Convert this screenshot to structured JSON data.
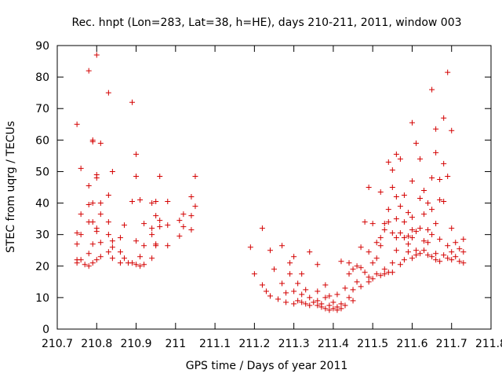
{
  "chart_data": {
    "type": "scatter",
    "title": "Rec. hnpt (Lon=283, Lat=38, h=HE), days 210-211, 2011, window 003",
    "xlabel": "GPS time / Days of year 2011",
    "ylabel": "STEC from uqrg / TECUs",
    "xlim": [
      210.7,
      211.8
    ],
    "ylim": [
      0,
      90
    ],
    "xticks": [
      "210.7",
      "210.8",
      "210.9",
      "211",
      "211.1",
      "211.2",
      "211.3",
      "211.4",
      "211.5",
      "211.6",
      "211.7",
      "211.8"
    ],
    "xtick_values": [
      210.7,
      210.8,
      210.9,
      211.0,
      211.1,
      211.2,
      211.3,
      211.4,
      211.5,
      211.6,
      211.7,
      211.8
    ],
    "yticks": [
      "0",
      "10",
      "20",
      "30",
      "40",
      "50",
      "60",
      "70",
      "80",
      "90"
    ],
    "ytick_values": [
      0,
      10,
      20,
      30,
      40,
      50,
      60,
      70,
      80,
      90
    ],
    "grid": false,
    "marker": "+",
    "color": "#d40000",
    "points": [
      [
        210.75,
        65
      ],
      [
        210.75,
        30.5
      ],
      [
        210.75,
        27
      ],
      [
        210.75,
        22
      ],
      [
        210.75,
        21
      ],
      [
        210.76,
        51
      ],
      [
        210.76,
        36.5
      ],
      [
        210.76,
        30
      ],
      [
        210.76,
        22
      ],
      [
        210.77,
        20.5
      ],
      [
        210.78,
        82
      ],
      [
        210.78,
        45.5
      ],
      [
        210.78,
        39.5
      ],
      [
        210.78,
        34
      ],
      [
        210.78,
        24
      ],
      [
        210.78,
        20
      ],
      [
        210.79,
        60
      ],
      [
        210.79,
        59.5
      ],
      [
        210.79,
        40
      ],
      [
        210.79,
        34
      ],
      [
        210.79,
        27
      ],
      [
        210.79,
        21
      ],
      [
        210.8,
        87
      ],
      [
        210.8,
        49
      ],
      [
        210.8,
        48
      ],
      [
        210.8,
        32
      ],
      [
        210.8,
        31
      ],
      [
        210.8,
        22
      ],
      [
        210.81,
        59
      ],
      [
        210.81,
        40
      ],
      [
        210.81,
        36.5
      ],
      [
        210.81,
        27.5
      ],
      [
        210.81,
        23
      ],
      [
        210.83,
        75
      ],
      [
        210.83,
        42.5
      ],
      [
        210.83,
        34
      ],
      [
        210.83,
        30
      ],
      [
        210.83,
        24.5
      ],
      [
        210.84,
        50
      ],
      [
        210.84,
        28
      ],
      [
        210.84,
        26
      ],
      [
        210.84,
        22.5
      ],
      [
        210.86,
        29
      ],
      [
        210.86,
        24.5
      ],
      [
        210.86,
        21
      ],
      [
        210.87,
        33
      ],
      [
        210.87,
        22.5
      ],
      [
        210.88,
        21
      ],
      [
        210.89,
        72
      ],
      [
        210.89,
        40.5
      ],
      [
        210.89,
        21
      ],
      [
        210.9,
        55.5
      ],
      [
        210.9,
        48.5
      ],
      [
        210.9,
        28
      ],
      [
        210.9,
        20.5
      ],
      [
        210.91,
        41
      ],
      [
        210.91,
        23
      ],
      [
        210.91,
        20
      ],
      [
        210.92,
        33.5
      ],
      [
        210.92,
        26.5
      ],
      [
        210.92,
        20.5
      ],
      [
        210.94,
        40
      ],
      [
        210.94,
        32
      ],
      [
        210.94,
        30
      ],
      [
        210.94,
        22.5
      ],
      [
        210.95,
        40.5
      ],
      [
        210.95,
        36
      ],
      [
        210.95,
        27
      ],
      [
        210.95,
        26.5
      ],
      [
        210.96,
        48.5
      ],
      [
        210.96,
        34.5
      ],
      [
        210.96,
        32.5
      ],
      [
        210.98,
        40.5
      ],
      [
        210.98,
        33
      ],
      [
        210.98,
        26.5
      ],
      [
        211.01,
        34.5
      ],
      [
        211.01,
        29.5
      ],
      [
        211.02,
        36.5
      ],
      [
        211.02,
        32.5
      ],
      [
        211.04,
        42
      ],
      [
        211.04,
        36
      ],
      [
        211.04,
        31.5
      ],
      [
        211.05,
        48.5
      ],
      [
        211.05,
        39
      ],
      [
        211.19,
        26
      ],
      [
        211.2,
        17.5
      ],
      [
        211.22,
        32
      ],
      [
        211.22,
        14
      ],
      [
        211.23,
        12
      ],
      [
        211.24,
        25
      ],
      [
        211.24,
        10.5
      ],
      [
        211.25,
        19
      ],
      [
        211.26,
        9.5
      ],
      [
        211.27,
        26.5
      ],
      [
        211.27,
        14.5
      ],
      [
        211.28,
        11.5
      ],
      [
        211.28,
        8.5
      ],
      [
        211.29,
        21
      ],
      [
        211.29,
        17.5
      ],
      [
        211.3,
        23
      ],
      [
        211.3,
        12
      ],
      [
        211.3,
        8
      ],
      [
        211.31,
        14.5
      ],
      [
        211.31,
        9
      ],
      [
        211.32,
        17.5
      ],
      [
        211.32,
        11
      ],
      [
        211.32,
        8.5
      ],
      [
        211.33,
        12.5
      ],
      [
        211.33,
        8
      ],
      [
        211.34,
        24.5
      ],
      [
        211.34,
        10
      ],
      [
        211.34,
        7.5
      ],
      [
        211.35,
        8.5
      ],
      [
        211.36,
        20.5
      ],
      [
        211.36,
        12
      ],
      [
        211.36,
        9
      ],
      [
        211.36,
        7.5
      ],
      [
        211.37,
        8
      ],
      [
        211.37,
        7
      ],
      [
        211.38,
        14
      ],
      [
        211.38,
        10
      ],
      [
        211.38,
        6.5
      ],
      [
        211.39,
        10.5
      ],
      [
        211.39,
        7.5
      ],
      [
        211.39,
        6
      ],
      [
        211.4,
        8.5
      ],
      [
        211.4,
        6.5
      ],
      [
        211.41,
        11
      ],
      [
        211.41,
        7
      ],
      [
        211.41,
        6
      ],
      [
        211.42,
        21.5
      ],
      [
        211.42,
        8
      ],
      [
        211.42,
        6.5
      ],
      [
        211.43,
        13
      ],
      [
        211.43,
        7.5
      ],
      [
        211.44,
        21
      ],
      [
        211.44,
        17.5
      ],
      [
        211.44,
        10
      ],
      [
        211.45,
        19
      ],
      [
        211.45,
        12.5
      ],
      [
        211.45,
        9
      ],
      [
        211.46,
        20
      ],
      [
        211.46,
        15
      ],
      [
        211.47,
        26
      ],
      [
        211.47,
        19.5
      ],
      [
        211.47,
        13.5
      ],
      [
        211.48,
        34
      ],
      [
        211.48,
        18
      ],
      [
        211.49,
        45
      ],
      [
        211.49,
        24.5
      ],
      [
        211.49,
        16.5
      ],
      [
        211.49,
        15
      ],
      [
        211.5,
        33.5
      ],
      [
        211.5,
        21
      ],
      [
        211.5,
        16
      ],
      [
        211.51,
        27.5
      ],
      [
        211.51,
        22.5
      ],
      [
        211.51,
        17.5
      ],
      [
        211.52,
        43.5
      ],
      [
        211.52,
        29
      ],
      [
        211.52,
        26.5
      ],
      [
        211.52,
        17
      ],
      [
        211.53,
        33.5
      ],
      [
        211.53,
        31.5
      ],
      [
        211.53,
        19
      ],
      [
        211.53,
        17.5
      ],
      [
        211.54,
        53
      ],
      [
        211.54,
        38
      ],
      [
        211.54,
        34
      ],
      [
        211.54,
        18
      ],
      [
        211.55,
        50.5
      ],
      [
        211.55,
        45
      ],
      [
        211.55,
        30.5
      ],
      [
        211.55,
        21
      ],
      [
        211.55,
        18
      ],
      [
        211.56,
        55.5
      ],
      [
        211.56,
        42
      ],
      [
        211.56,
        35
      ],
      [
        211.56,
        29
      ],
      [
        211.56,
        25
      ],
      [
        211.57,
        54
      ],
      [
        211.57,
        39
      ],
      [
        211.57,
        30.5
      ],
      [
        211.57,
        20.5
      ],
      [
        211.58,
        42.5
      ],
      [
        211.58,
        34
      ],
      [
        211.58,
        29
      ],
      [
        211.58,
        22
      ],
      [
        211.59,
        37
      ],
      [
        211.59,
        29.5
      ],
      [
        211.59,
        27
      ],
      [
        211.59,
        24.5
      ],
      [
        211.6,
        65.5
      ],
      [
        211.6,
        47
      ],
      [
        211.6,
        35.5
      ],
      [
        211.6,
        31.5
      ],
      [
        211.6,
        29
      ],
      [
        211.6,
        22.5
      ],
      [
        211.61,
        59
      ],
      [
        211.61,
        31
      ],
      [
        211.61,
        25
      ],
      [
        211.61,
        23.5
      ],
      [
        211.62,
        54
      ],
      [
        211.62,
        41.5
      ],
      [
        211.62,
        32
      ],
      [
        211.62,
        24
      ],
      [
        211.63,
        44
      ],
      [
        211.63,
        36.5
      ],
      [
        211.63,
        28
      ],
      [
        211.63,
        25
      ],
      [
        211.64,
        40
      ],
      [
        211.64,
        31.5
      ],
      [
        211.64,
        27.5
      ],
      [
        211.64,
        23.5
      ],
      [
        211.65,
        76
      ],
      [
        211.65,
        48
      ],
      [
        211.65,
        38
      ],
      [
        211.65,
        30
      ],
      [
        211.65,
        23
      ],
      [
        211.66,
        63.5
      ],
      [
        211.66,
        56
      ],
      [
        211.66,
        33.5
      ],
      [
        211.66,
        24
      ],
      [
        211.66,
        22
      ],
      [
        211.67,
        47.5
      ],
      [
        211.67,
        41
      ],
      [
        211.67,
        28.5
      ],
      [
        211.67,
        21.5
      ],
      [
        211.68,
        67
      ],
      [
        211.68,
        52.5
      ],
      [
        211.68,
        40.5
      ],
      [
        211.68,
        23.5
      ],
      [
        211.69,
        81.5
      ],
      [
        211.69,
        48.5
      ],
      [
        211.69,
        26.5
      ],
      [
        211.69,
        22.5
      ],
      [
        211.7,
        63
      ],
      [
        211.7,
        32
      ],
      [
        211.7,
        24.5
      ],
      [
        211.7,
        22
      ],
      [
        211.71,
        27.5
      ],
      [
        211.71,
        23
      ],
      [
        211.72,
        25.5
      ],
      [
        211.72,
        21.5
      ],
      [
        211.73,
        28.5
      ],
      [
        211.73,
        24.5
      ],
      [
        211.73,
        21
      ]
    ]
  }
}
